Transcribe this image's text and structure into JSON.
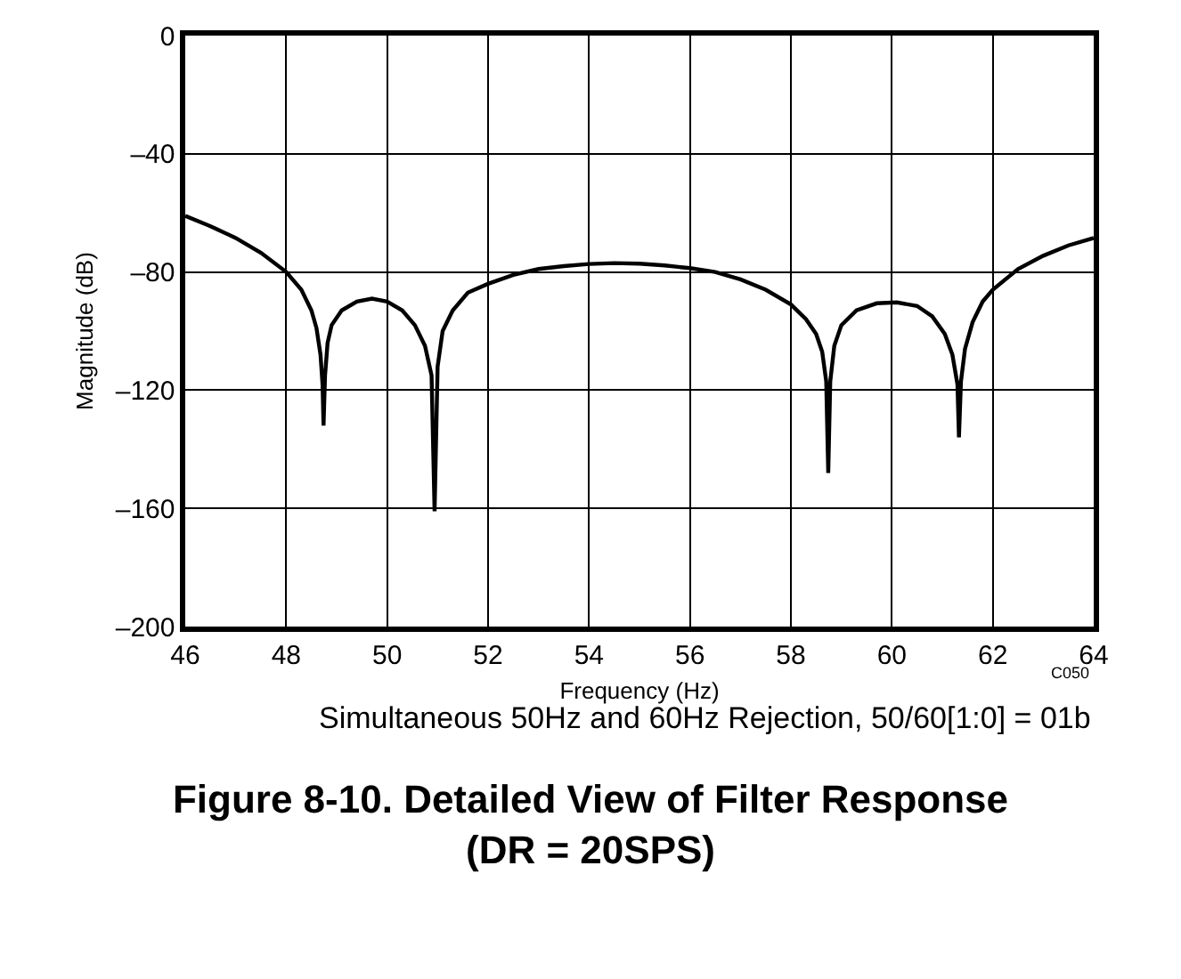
{
  "chart_data": {
    "type": "line",
    "title": "Figure 8-10. Detailed View of Filter Response\n(DR = 20SPS)",
    "xlabel": "Frequency (Hz)",
    "ylabel": "Magnitude (dB)",
    "annotations": [
      "C050",
      "Simultaneous 50Hz and 60Hz Rejection, 50/60[1:0] = 01b"
    ],
    "xlim": [
      46,
      64
    ],
    "xticks": [
      46,
      48,
      50,
      52,
      54,
      56,
      58,
      60,
      62,
      64
    ],
    "ylim": [
      -200,
      0
    ],
    "yticks": [
      {
        "value": 0,
        "label": "0"
      },
      {
        "value": -40,
        "label": "–40"
      },
      {
        "value": -80,
        "label": "–80"
      },
      {
        "value": -120,
        "label": "–120"
      },
      {
        "value": -160,
        "label": "–160"
      },
      {
        "value": -200,
        "label": "–200"
      }
    ],
    "grid": true,
    "marker": "none",
    "line_style": "solid",
    "series": [
      {
        "color": "#000000",
        "x": [
          46,
          46.5,
          47,
          47.5,
          48,
          48.3,
          48.5,
          48.6,
          48.68,
          48.72,
          48.74,
          48.77,
          48.82,
          48.9,
          49.1,
          49.4,
          49.7,
          50.0,
          50.3,
          50.55,
          50.75,
          50.88,
          50.94,
          51.0,
          51.1,
          51.3,
          51.6,
          52,
          52.5,
          53,
          53.5,
          54,
          54.5,
          55,
          55.5,
          56,
          56.5,
          57,
          57.5,
          58,
          58.3,
          58.5,
          58.62,
          58.7,
          58.74,
          58.78,
          58.86,
          59,
          59.3,
          59.7,
          60.1,
          60.5,
          60.8,
          61.05,
          61.2,
          61.3,
          61.33,
          61.37,
          61.45,
          61.6,
          61.8,
          62,
          62.5,
          63,
          63.5,
          64
        ],
        "values": [
          -61,
          -64.5,
          -68.5,
          -73.5,
          -80,
          -86,
          -93,
          -99,
          -108,
          -118,
          -132,
          -115,
          -104,
          -98,
          -93,
          -90,
          -89,
          -90,
          -93,
          -98,
          -105,
          -115,
          -161,
          -112,
          -100,
          -93,
          -87,
          -84,
          -81,
          -79,
          -78,
          -77.3,
          -77,
          -77.2,
          -77.8,
          -78.7,
          -80,
          -82.5,
          -86,
          -91,
          -96,
          -101,
          -107,
          -117,
          -148,
          -117,
          -105,
          -98,
          -93,
          -90.6,
          -90.3,
          -91.5,
          -95,
          -101,
          -108,
          -118,
          -136,
          -117,
          -106,
          -97,
          -90,
          -86,
          -79,
          -74.5,
          -71,
          -68.5
        ]
      }
    ]
  }
}
